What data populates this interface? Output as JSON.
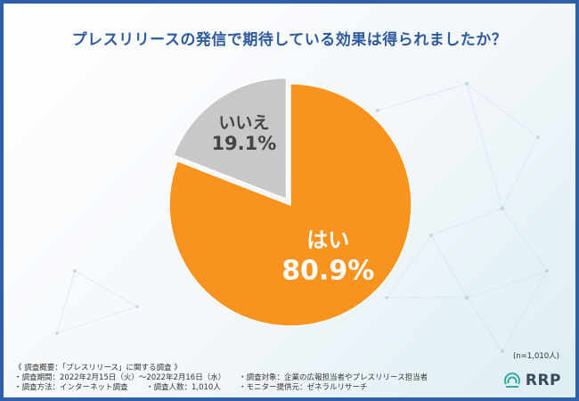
{
  "title": "プレスリリースの発信で期待している効果は得られましたか？",
  "chart_data": {
    "type": "pie",
    "title": "プレスリリースの発信で期待している効果は得られましたか？",
    "slices": [
      {
        "label": "はい",
        "value": 80.9,
        "value_label": "80.9%",
        "color": "#f7931e"
      },
      {
        "label": "いいえ",
        "value": 19.1,
        "value_label": "19.1%",
        "color": "#c8c8c8"
      }
    ],
    "start": "top",
    "direction": "clockwise",
    "legend": "none"
  },
  "sample_size": "(n=1,010人)",
  "survey": {
    "heading": "《 調査概要：「プレスリリース」に関する調査 》",
    "period": "・調査期間：2022年2月15日（火）～2022年2月16日（水）",
    "method": "・調査方法：インターネット調査",
    "respondents": "・調査人数：1,010人",
    "target": "・調査対象：企業の広報担当者やプレスリリース担当者",
    "provider": "・モニター提供元：ゼネラルリサーチ"
  },
  "logo": {
    "text": "RRP",
    "icon": "rrp-logo-icon"
  }
}
